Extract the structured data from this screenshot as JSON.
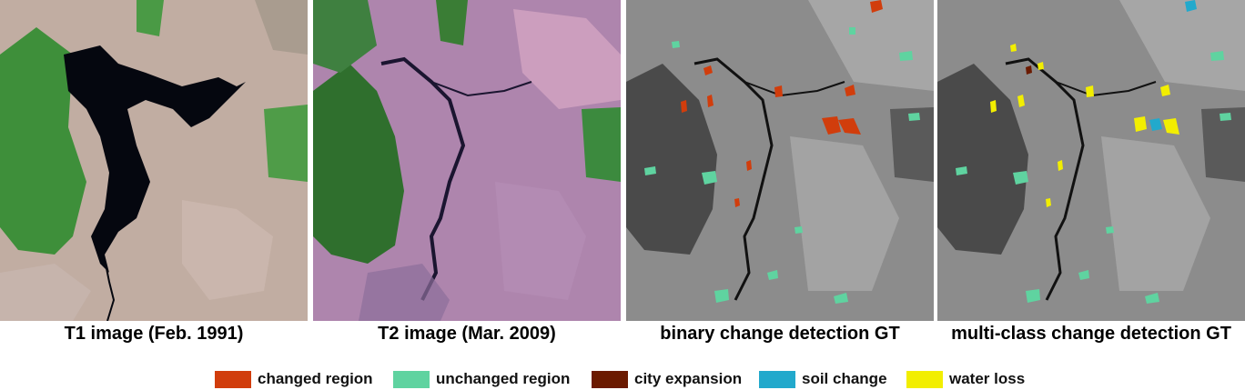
{
  "panels": [
    {
      "caption": "T1 image (Feb. 1991)"
    },
    {
      "caption": "T2 image (Mar. 2009)"
    },
    {
      "caption": "binary change detection GT"
    },
    {
      "caption": "multi-class change detection GT"
    }
  ],
  "legend": [
    {
      "label": "changed region",
      "color": "#d13d0c"
    },
    {
      "label": "unchanged region",
      "color": "#5fd3a0"
    },
    {
      "label": "city expansion",
      "color": "#6b1a00"
    },
    {
      "label": "soil change",
      "color": "#22a9cc"
    },
    {
      "label": "water loss",
      "color": "#f2ee00"
    }
  ]
}
